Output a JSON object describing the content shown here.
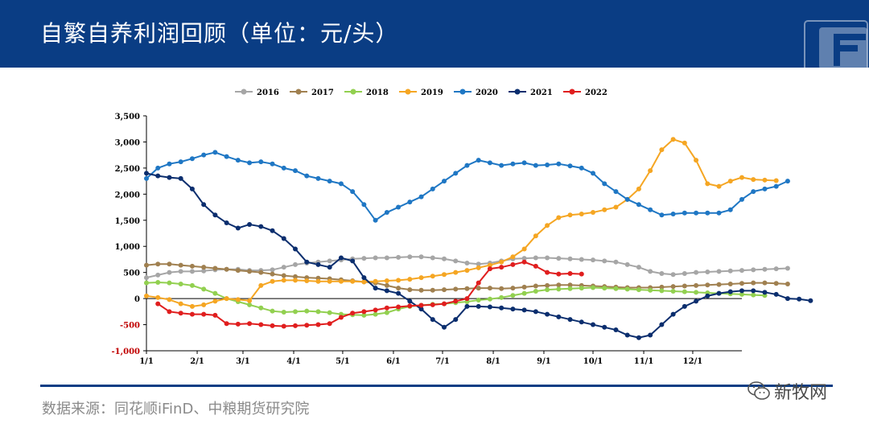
{
  "header": {
    "title": "自繁自养利润回顾（单位：元/头）"
  },
  "footer": {
    "source": "数据来源：同花顺iFinD、中粮期货研究院"
  },
  "watermark": {
    "text": "新牧网"
  },
  "colors": {
    "header_bg": "#0a3d84",
    "axis": "#000000",
    "negative_tick": "#c00000"
  },
  "chart_data": {
    "type": "line",
    "title": "",
    "xlabel": "",
    "ylabel": "",
    "ylim": [
      -1000,
      3500
    ],
    "yticks": [
      -1000,
      -500,
      0,
      500,
      1000,
      1500,
      2000,
      2500,
      3000,
      3500
    ],
    "ytick_labels": [
      "-1,000",
      "-500",
      "0",
      "500",
      "1,000",
      "1,500",
      "2,000",
      "2,500",
      "3,000",
      "3,500"
    ],
    "xlim": [
      0,
      52
    ],
    "xtick_labels": [
      "1/1",
      "2/1",
      "3/1",
      "4/1",
      "5/1",
      "6/1",
      "7/1",
      "8/1",
      "9/1",
      "10/1",
      "11/1",
      "12/1"
    ],
    "xticks": [
      0,
      4.43,
      8.43,
      12.86,
      17.14,
      21.57,
      25.86,
      30.29,
      34.71,
      39,
      43.43,
      47.71
    ],
    "legend_position": "top",
    "series": [
      {
        "name": "2016",
        "color": "#a6a6a6",
        "values": [
          400,
          450,
          500,
          520,
          520,
          530,
          550,
          560,
          560,
          540,
          540,
          550,
          600,
          650,
          680,
          700,
          720,
          740,
          760,
          770,
          780,
          780,
          790,
          800,
          800,
          780,
          760,
          720,
          680,
          660,
          680,
          720,
          760,
          770,
          780,
          780,
          770,
          760,
          750,
          740,
          720,
          700,
          650,
          600,
          520,
          480,
          460,
          480,
          500,
          510,
          520,
          530,
          540,
          550,
          560,
          570,
          580
        ]
      },
      {
        "name": "2017",
        "color": "#a08050",
        "values": [
          640,
          660,
          660,
          640,
          620,
          600,
          580,
          560,
          540,
          520,
          500,
          470,
          440,
          420,
          400,
          390,
          380,
          360,
          340,
          320,
          300,
          250,
          200,
          170,
          160,
          160,
          170,
          180,
          190,
          200,
          200,
          190,
          200,
          220,
          240,
          250,
          260,
          260,
          250,
          240,
          230,
          220,
          210,
          210,
          210,
          220,
          230,
          240,
          250,
          260,
          270,
          280,
          290,
          300,
          300,
          290,
          280
        ]
      },
      {
        "name": "2018",
        "color": "#92d050",
        "values": [
          300,
          310,
          300,
          280,
          250,
          180,
          100,
          0,
          -60,
          -120,
          -180,
          -240,
          -260,
          -250,
          -240,
          -250,
          -270,
          -300,
          -310,
          -320,
          -300,
          -270,
          -200,
          -150,
          -130,
          -110,
          -100,
          -80,
          -60,
          -30,
          -10,
          20,
          60,
          100,
          140,
          170,
          180,
          190,
          200,
          210,
          200,
          190,
          180,
          170,
          160,
          150,
          140,
          130,
          120,
          110,
          100,
          90,
          80,
          70,
          60
        ]
      },
      {
        "name": "2019",
        "color": "#f5a623",
        "values": [
          50,
          20,
          -20,
          -100,
          -150,
          -120,
          -50,
          0,
          -20,
          -40,
          250,
          330,
          350,
          350,
          340,
          330,
          330,
          330,
          330,
          320,
          330,
          340,
          350,
          370,
          400,
          430,
          460,
          500,
          540,
          590,
          640,
          700,
          800,
          950,
          1200,
          1400,
          1550,
          1600,
          1620,
          1650,
          1700,
          1750,
          1900,
          2100,
          2450,
          2850,
          3050,
          2980,
          2650,
          2200,
          2150,
          2250,
          2320,
          2280,
          2270,
          2260
        ]
      },
      {
        "name": "2020",
        "color": "#1f77c4",
        "values": [
          2300,
          2500,
          2580,
          2620,
          2680,
          2750,
          2800,
          2720,
          2650,
          2600,
          2620,
          2580,
          2500,
          2450,
          2350,
          2300,
          2250,
          2200,
          2050,
          1800,
          1500,
          1650,
          1750,
          1850,
          1950,
          2100,
          2250,
          2400,
          2550,
          2650,
          2600,
          2550,
          2580,
          2600,
          2550,
          2560,
          2580,
          2540,
          2500,
          2400,
          2200,
          2050,
          1900,
          1800,
          1700,
          1600,
          1620,
          1640,
          1640,
          1640,
          1640,
          1700,
          1900,
          2050,
          2100,
          2150,
          2250
        ]
      },
      {
        "name": "2021",
        "color": "#0b2e6e",
        "values": [
          2400,
          2350,
          2320,
          2300,
          2100,
          1800,
          1600,
          1450,
          1350,
          1420,
          1380,
          1300,
          1150,
          950,
          700,
          650,
          600,
          780,
          720,
          400,
          200,
          150,
          100,
          -50,
          -200,
          -400,
          -550,
          -400,
          -150,
          -150,
          -160,
          -180,
          -200,
          -220,
          -250,
          -300,
          -350,
          -400,
          -450,
          -500,
          -550,
          -600,
          -700,
          -750,
          -700,
          -500,
          -300,
          -150,
          -50,
          50,
          100,
          130,
          150,
          150,
          120,
          80,
          0,
          -10,
          -40
        ]
      },
      {
        "name": "2022",
        "color": "#e01e1e",
        "values": [
          -100,
          -250,
          -280,
          -300,
          -300,
          -320,
          -480,
          -490,
          -480,
          -500,
          -520,
          -530,
          -520,
          -510,
          -500,
          -480,
          -360,
          -280,
          -250,
          -220,
          -180,
          -160,
          -140,
          -130,
          -120,
          -100,
          -50,
          0,
          300,
          570,
          600,
          650,
          700,
          620,
          500,
          470,
          480,
          470
        ]
      }
    ],
    "series_start_index": {
      "2022": 1
    }
  }
}
